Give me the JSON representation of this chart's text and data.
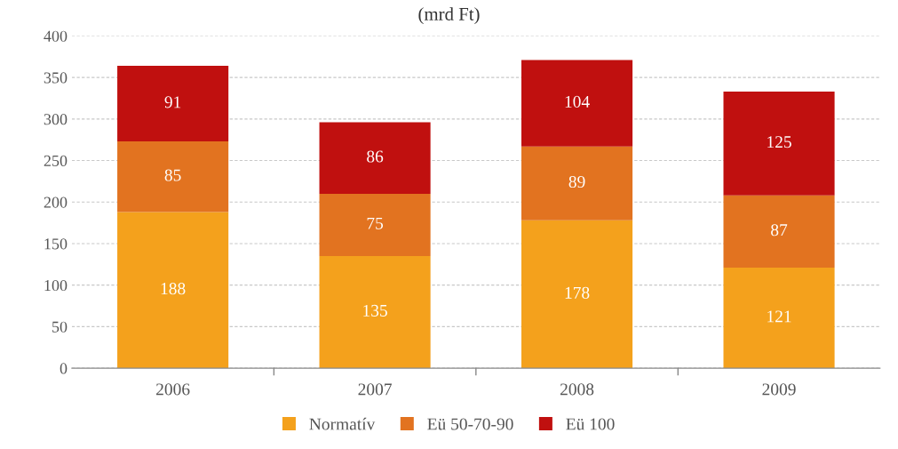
{
  "chart_data": {
    "type": "bar",
    "title": "(mrd Ft)",
    "stacked": true,
    "categories": [
      "2006",
      "2007",
      "2008",
      "2009"
    ],
    "series": [
      {
        "name": "Normatív",
        "color": "#f4a11c",
        "values": [
          188,
          135,
          178,
          121
        ]
      },
      {
        "name": "Eü 50-70-90",
        "color": "#e27320",
        "values": [
          85,
          75,
          89,
          87
        ]
      },
      {
        "name": "Eü 100",
        "color": "#c0100f",
        "values": [
          91,
          86,
          104,
          125
        ]
      }
    ],
    "ylim": [
      0,
      400
    ],
    "yticks": [
      0,
      50,
      100,
      150,
      200,
      250,
      300,
      350,
      400
    ],
    "grid": "y",
    "legend": "bottom",
    "data_labels": true
  }
}
